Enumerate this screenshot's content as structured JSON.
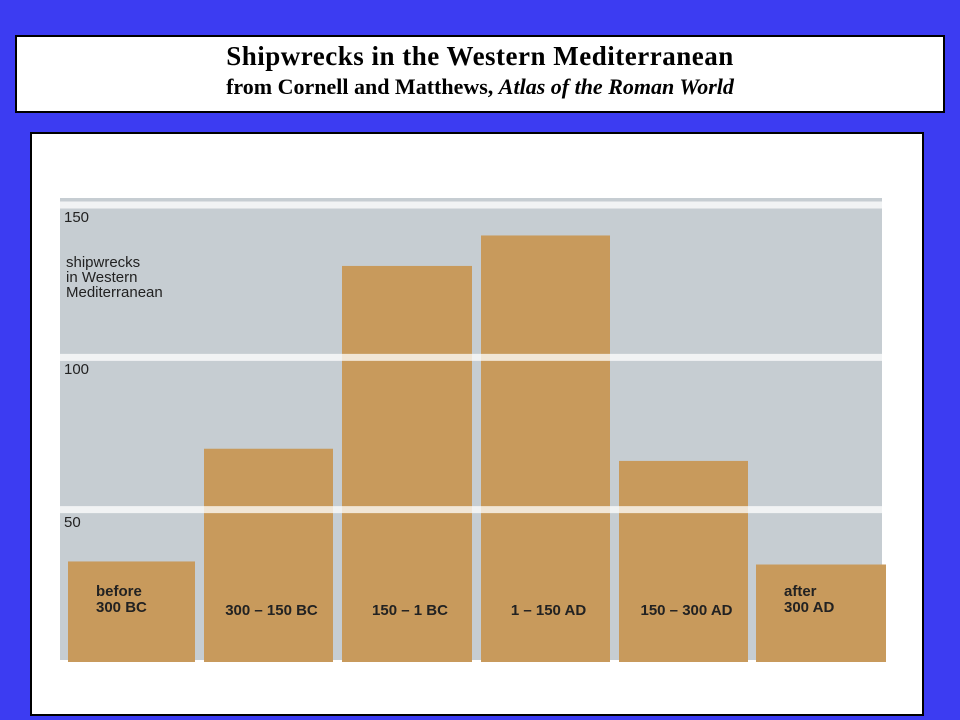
{
  "chart_data": {
    "type": "bar",
    "title": "Shipwrecks in the Western Mediterranean",
    "subtitle": "from Cornell and Matthews,",
    "source_title": "Atlas of the Roman World",
    "y_label": "shipwrecks\nin Western\nMediterranean",
    "categories": [
      "before\n300 BC",
      "300 – 150 BC",
      "150 – 1 BC",
      "1 – 150 AD",
      "150 – 300 AD",
      "after\n300 AD"
    ],
    "values": [
      33,
      70,
      130,
      140,
      66,
      32
    ],
    "color": "#c89a5c",
    "ylim": [
      0,
      150
    ],
    "yticks": [
      50,
      100,
      150
    ],
    "grid": true
  }
}
